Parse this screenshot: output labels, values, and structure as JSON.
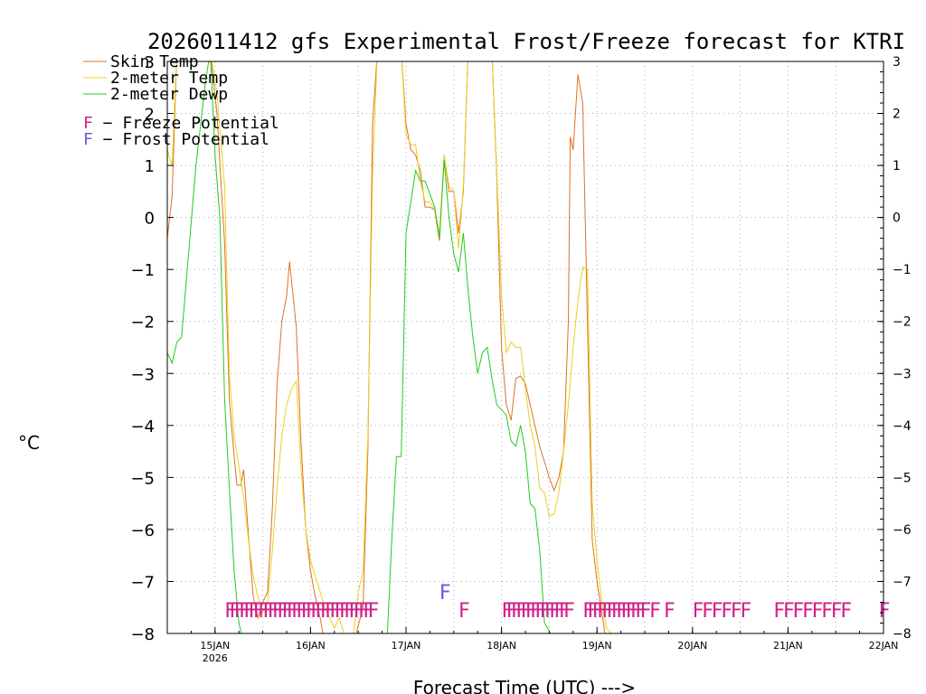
{
  "chart_data": {
    "type": "line",
    "title": "2026011412 gfs Experimental Frost/Freeze forecast for KTRI",
    "ylabel": "°C",
    "xlabel": "Forecast Time (UTC) --->",
    "ylim": [
      -8,
      3
    ],
    "xlim": [
      14.5,
      22.0
    ],
    "yticks": [
      -8,
      -7,
      -6,
      -5,
      -4,
      -3,
      -2,
      -1,
      0,
      1,
      2,
      3
    ],
    "ytick_labels": [
      "−8",
      "−7",
      "−6",
      "−5",
      "−4",
      "−3",
      "−2",
      "−1",
      "0",
      "1",
      "2",
      "3"
    ],
    "xticks": [
      {
        "x": 15,
        "label": "15JAN",
        "sublabel": "2026"
      },
      {
        "x": 16,
        "label": "16JAN"
      },
      {
        "x": 17,
        "label": "17JAN"
      },
      {
        "x": 18,
        "label": "18JAN"
      },
      {
        "x": 19,
        "label": "19JAN"
      },
      {
        "x": 20,
        "label": "20JAN"
      },
      {
        "x": 21,
        "label": "21JAN"
      },
      {
        "x": 22,
        "label": "22JAN"
      }
    ],
    "grid": true,
    "legend_position": "top-left",
    "series": [
      {
        "name": "Skin Temp",
        "color": "#e07020",
        "points": [
          [
            14.5,
            -0.4
          ],
          [
            14.55,
            0.4
          ],
          [
            14.6,
            3.2
          ],
          [
            14.95,
            3.2
          ],
          [
            15.02,
            2.0
          ],
          [
            15.1,
            -0.5
          ],
          [
            15.15,
            -3.5
          ],
          [
            15.2,
            -4.6
          ],
          [
            15.23,
            -5.15
          ],
          [
            15.27,
            -5.15
          ],
          [
            15.3,
            -4.85
          ],
          [
            15.33,
            -5.6
          ],
          [
            15.37,
            -6.6
          ],
          [
            15.4,
            -7.3
          ],
          [
            15.45,
            -7.7
          ],
          [
            15.5,
            -7.4
          ],
          [
            15.55,
            -7.2
          ],
          [
            15.6,
            -5.6
          ],
          [
            15.65,
            -3.2
          ],
          [
            15.7,
            -2.0
          ],
          [
            15.75,
            -1.5
          ],
          [
            15.78,
            -0.85
          ],
          [
            15.85,
            -2.1
          ],
          [
            15.9,
            -4.3
          ],
          [
            15.95,
            -6.0
          ],
          [
            16.0,
            -6.8
          ],
          [
            16.05,
            -7.3
          ],
          [
            16.1,
            -7.7
          ],
          [
            16.15,
            -8.2
          ],
          [
            16.45,
            -8.2
          ],
          [
            16.55,
            -7.5
          ],
          [
            16.6,
            -4.5
          ],
          [
            16.65,
            1.8
          ],
          [
            16.7,
            3.2
          ],
          [
            16.95,
            3.2
          ],
          [
            17.0,
            1.8
          ],
          [
            17.05,
            1.3
          ],
          [
            17.1,
            1.2
          ],
          [
            17.15,
            0.9
          ],
          [
            17.2,
            0.2
          ],
          [
            17.25,
            0.2
          ],
          [
            17.3,
            0.15
          ],
          [
            17.35,
            -0.45
          ],
          [
            17.4,
            1.2
          ],
          [
            17.45,
            0.5
          ],
          [
            17.5,
            0.5
          ],
          [
            17.55,
            -0.3
          ],
          [
            17.6,
            0.5
          ],
          [
            17.65,
            3.2
          ],
          [
            17.9,
            3.2
          ],
          [
            17.95,
            0.8
          ],
          [
            18.0,
            -2.5
          ],
          [
            18.05,
            -3.6
          ],
          [
            18.1,
            -3.9
          ],
          [
            18.15,
            -3.1
          ],
          [
            18.2,
            -3.05
          ],
          [
            18.25,
            -3.2
          ],
          [
            18.3,
            -3.6
          ],
          [
            18.4,
            -4.4
          ],
          [
            18.5,
            -5.0
          ],
          [
            18.55,
            -5.25
          ],
          [
            18.6,
            -5.0
          ],
          [
            18.65,
            -4.5
          ],
          [
            18.7,
            -2.0
          ],
          [
            18.72,
            1.55
          ],
          [
            18.75,
            1.3
          ],
          [
            18.8,
            2.75
          ],
          [
            18.85,
            2.2
          ],
          [
            18.9,
            -2.0
          ],
          [
            18.95,
            -6.2
          ],
          [
            19.0,
            -7.0
          ],
          [
            19.05,
            -7.6
          ],
          [
            19.1,
            -8.2
          ]
        ]
      },
      {
        "name": "2-meter Temp",
        "color": "#e8d020",
        "points": [
          [
            14.5,
            1.3
          ],
          [
            14.55,
            1.0
          ],
          [
            14.6,
            3.2
          ],
          [
            14.95,
            3.2
          ],
          [
            15.02,
            2.4
          ],
          [
            15.1,
            0.6
          ],
          [
            15.15,
            -3.0
          ],
          [
            15.2,
            -4.2
          ],
          [
            15.25,
            -4.8
          ],
          [
            15.3,
            -5.4
          ],
          [
            15.35,
            -6.2
          ],
          [
            15.4,
            -6.9
          ],
          [
            15.45,
            -7.3
          ],
          [
            15.5,
            -7.6
          ],
          [
            15.55,
            -7.4
          ],
          [
            15.6,
            -6.4
          ],
          [
            15.65,
            -5.2
          ],
          [
            15.7,
            -4.2
          ],
          [
            15.75,
            -3.6
          ],
          [
            15.8,
            -3.3
          ],
          [
            15.85,
            -3.15
          ],
          [
            15.9,
            -4.8
          ],
          [
            15.95,
            -6.0
          ],
          [
            16.0,
            -6.6
          ],
          [
            16.05,
            -6.9
          ],
          [
            16.1,
            -7.2
          ],
          [
            16.15,
            -7.5
          ],
          [
            16.2,
            -7.7
          ],
          [
            16.25,
            -7.9
          ],
          [
            16.3,
            -7.7
          ],
          [
            16.35,
            -8.0
          ],
          [
            16.45,
            -8.0
          ],
          [
            16.5,
            -7.2
          ],
          [
            16.55,
            -6.8
          ],
          [
            16.6,
            -4.2
          ],
          [
            16.65,
            0.8
          ],
          [
            16.7,
            3.2
          ],
          [
            16.95,
            3.2
          ],
          [
            17.0,
            1.6
          ],
          [
            17.05,
            1.4
          ],
          [
            17.1,
            1.4
          ],
          [
            17.15,
            0.7
          ],
          [
            17.2,
            0.3
          ],
          [
            17.25,
            0.3
          ],
          [
            17.3,
            0.15
          ],
          [
            17.35,
            -0.3
          ],
          [
            17.4,
            1.2
          ],
          [
            17.45,
            0.6
          ],
          [
            17.5,
            0.5
          ],
          [
            17.55,
            -0.6
          ],
          [
            17.6,
            0.6
          ],
          [
            17.65,
            3.2
          ],
          [
            17.9,
            3.2
          ],
          [
            17.95,
            0.9
          ],
          [
            18.0,
            -1.5
          ],
          [
            18.05,
            -2.6
          ],
          [
            18.1,
            -2.4
          ],
          [
            18.15,
            -2.5
          ],
          [
            18.2,
            -2.5
          ],
          [
            18.25,
            -3.3
          ],
          [
            18.3,
            -4.0
          ],
          [
            18.35,
            -4.4
          ],
          [
            18.4,
            -5.2
          ],
          [
            18.45,
            -5.3
          ],
          [
            18.5,
            -5.75
          ],
          [
            18.55,
            -5.7
          ],
          [
            18.6,
            -5.3
          ],
          [
            18.65,
            -4.5
          ],
          [
            18.7,
            -3.6
          ],
          [
            18.75,
            -2.5
          ],
          [
            18.8,
            -1.6
          ],
          [
            18.85,
            -0.95
          ],
          [
            18.9,
            -1.0
          ],
          [
            18.95,
            -5.5
          ],
          [
            19.0,
            -6.6
          ],
          [
            19.05,
            -7.4
          ],
          [
            19.1,
            -7.9
          ],
          [
            19.15,
            -8.0
          ],
          [
            19.2,
            -8.2
          ]
        ]
      },
      {
        "name": "2-meter Dewp",
        "color": "#20cc20",
        "points": [
          [
            14.5,
            -2.6
          ],
          [
            14.55,
            -2.8
          ],
          [
            14.6,
            -2.4
          ],
          [
            14.65,
            -2.3
          ],
          [
            14.7,
            -1.2
          ],
          [
            14.8,
            1.0
          ],
          [
            14.9,
            2.6
          ],
          [
            14.95,
            3.2
          ],
          [
            15.0,
            1.2
          ],
          [
            15.05,
            0.0
          ],
          [
            15.1,
            -3.5
          ],
          [
            15.15,
            -5.2
          ],
          [
            15.2,
            -6.8
          ],
          [
            15.25,
            -7.8
          ],
          [
            15.3,
            -8.2
          ],
          [
            16.8,
            -8.2
          ],
          [
            16.85,
            -6.2
          ],
          [
            16.9,
            -4.6
          ],
          [
            16.95,
            -4.6
          ],
          [
            17.0,
            -0.3
          ],
          [
            17.05,
            0.3
          ],
          [
            17.1,
            0.9
          ],
          [
            17.15,
            0.7
          ],
          [
            17.2,
            0.7
          ],
          [
            17.25,
            0.45
          ],
          [
            17.3,
            0.2
          ],
          [
            17.35,
            -0.4
          ],
          [
            17.4,
            1.1
          ],
          [
            17.45,
            0.0
          ],
          [
            17.5,
            -0.7
          ],
          [
            17.55,
            -1.05
          ],
          [
            17.6,
            -0.3
          ],
          [
            17.65,
            -1.4
          ],
          [
            17.7,
            -2.3
          ],
          [
            17.75,
            -3.0
          ],
          [
            17.8,
            -2.6
          ],
          [
            17.85,
            -2.5
          ],
          [
            17.9,
            -3.1
          ],
          [
            17.95,
            -3.6
          ],
          [
            18.0,
            -3.7
          ],
          [
            18.05,
            -3.8
          ],
          [
            18.1,
            -4.3
          ],
          [
            18.15,
            -4.4
          ],
          [
            18.2,
            -4.0
          ],
          [
            18.25,
            -4.5
          ],
          [
            18.3,
            -5.5
          ],
          [
            18.35,
            -5.6
          ],
          [
            18.4,
            -6.4
          ],
          [
            18.45,
            -7.8
          ],
          [
            18.5,
            -7.95
          ],
          [
            18.55,
            -8.2
          ]
        ]
      }
    ],
    "legend": [
      {
        "label": "Skin Temp",
        "color": "#e07020"
      },
      {
        "label": "2-meter Temp",
        "color": "#e8d020"
      },
      {
        "label": "2-meter Dewp",
        "color": "#20cc20"
      }
    ],
    "markers": {
      "freeze": {
        "label": "F - Freeze Potential",
        "glyph": "F",
        "color": "#d0208a",
        "y": -7.55,
        "x": [
          15.1,
          15.15,
          15.2,
          15.25,
          15.3,
          15.35,
          15.4,
          15.45,
          15.5,
          15.55,
          15.6,
          15.65,
          15.7,
          15.75,
          15.8,
          15.85,
          15.9,
          15.95,
          16.0,
          16.05,
          16.1,
          16.15,
          16.2,
          16.25,
          16.3,
          16.35,
          16.4,
          16.45,
          16.5,
          16.55,
          16.6,
          17.55,
          18.0,
          18.05,
          18.1,
          18.15,
          18.2,
          18.25,
          18.3,
          18.35,
          18.4,
          18.45,
          18.5,
          18.55,
          18.6,
          18.65,
          18.85,
          18.9,
          18.95,
          19.0,
          19.05,
          19.1,
          19.15,
          19.2,
          19.25,
          19.3,
          19.35,
          19.4,
          19.45,
          19.55,
          19.7,
          20.0,
          20.1,
          20.2,
          20.3,
          20.4,
          20.5,
          20.85,
          20.95,
          21.05,
          21.15,
          21.25,
          21.35,
          21.45,
          21.55,
          21.95
        ]
      },
      "frost": {
        "label": "F - Frost Potential",
        "glyph": "F",
        "color": "#6060e0",
        "y": -7.2,
        "x": [
          17.35
        ]
      }
    }
  }
}
